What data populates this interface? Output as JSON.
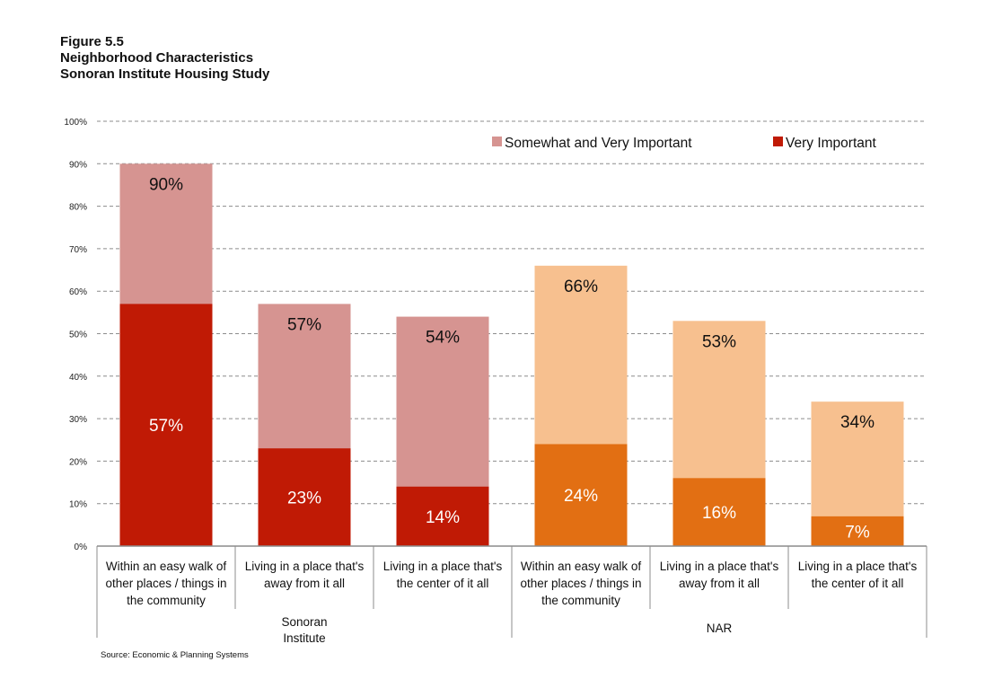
{
  "figure": {
    "label": "Figure 5.5",
    "title": "Neighborhood Characteristics",
    "subtitle": "Sonoran Institute Housing Study",
    "source": "Source: Economic & Planning Systems"
  },
  "chart_data": {
    "type": "bar",
    "stacking": "overlaid",
    "title": "Neighborhood Characteristics",
    "xlabel": "",
    "ylabel": "",
    "ylim": [
      0,
      100
    ],
    "yticks": [
      "0%",
      "10%",
      "20%",
      "30%",
      "40%",
      "50%",
      "60%",
      "70%",
      "80%",
      "90%",
      "100%"
    ],
    "grid": true,
    "legend_position": "top-right",
    "groups": [
      {
        "name": "Sonoran Institute",
        "label_lines": [
          "Sonoran",
          "Institute"
        ]
      },
      {
        "name": "NAR",
        "label_lines": [
          "NAR"
        ]
      }
    ],
    "categories": [
      {
        "group": 0,
        "lines": [
          "Within an easy walk of",
          "other places / things in",
          "the community"
        ]
      },
      {
        "group": 0,
        "lines": [
          "Living in a place that's",
          "away from it all"
        ]
      },
      {
        "group": 0,
        "lines": [
          "Living in a place that's",
          "the center of it all"
        ]
      },
      {
        "group": 1,
        "lines": [
          "Within an easy walk of",
          "other places / things in",
          "the community"
        ]
      },
      {
        "group": 1,
        "lines": [
          "Living in a place that's",
          "away from it all"
        ]
      },
      {
        "group": 1,
        "lines": [
          "Living in a place that's",
          "the center of it all"
        ]
      }
    ],
    "series": [
      {
        "name": "Somewhat and Very Important",
        "values": [
          90,
          57,
          54,
          66,
          53,
          34
        ],
        "labels": [
          "90%",
          "57%",
          "54%",
          "66%",
          "53%",
          "34%"
        ]
      },
      {
        "name": "Very Important",
        "values": [
          57,
          23,
          14,
          24,
          16,
          7
        ],
        "labels": [
          "57%",
          "23%",
          "14%",
          "24%",
          "16%",
          "7%"
        ]
      }
    ],
    "colors": {
      "group0": {
        "light": "#d69491",
        "dark": "#c01a05"
      },
      "group1": {
        "light": "#f7c08f",
        "dark": "#e26f13"
      },
      "grid": "#8c8c8c",
      "axis": "#8c8c8c"
    },
    "legend": [
      {
        "label": "Somewhat and Very Important",
        "color": "#d69491"
      },
      {
        "label": "Very Important",
        "color": "#c01a05"
      }
    ]
  }
}
